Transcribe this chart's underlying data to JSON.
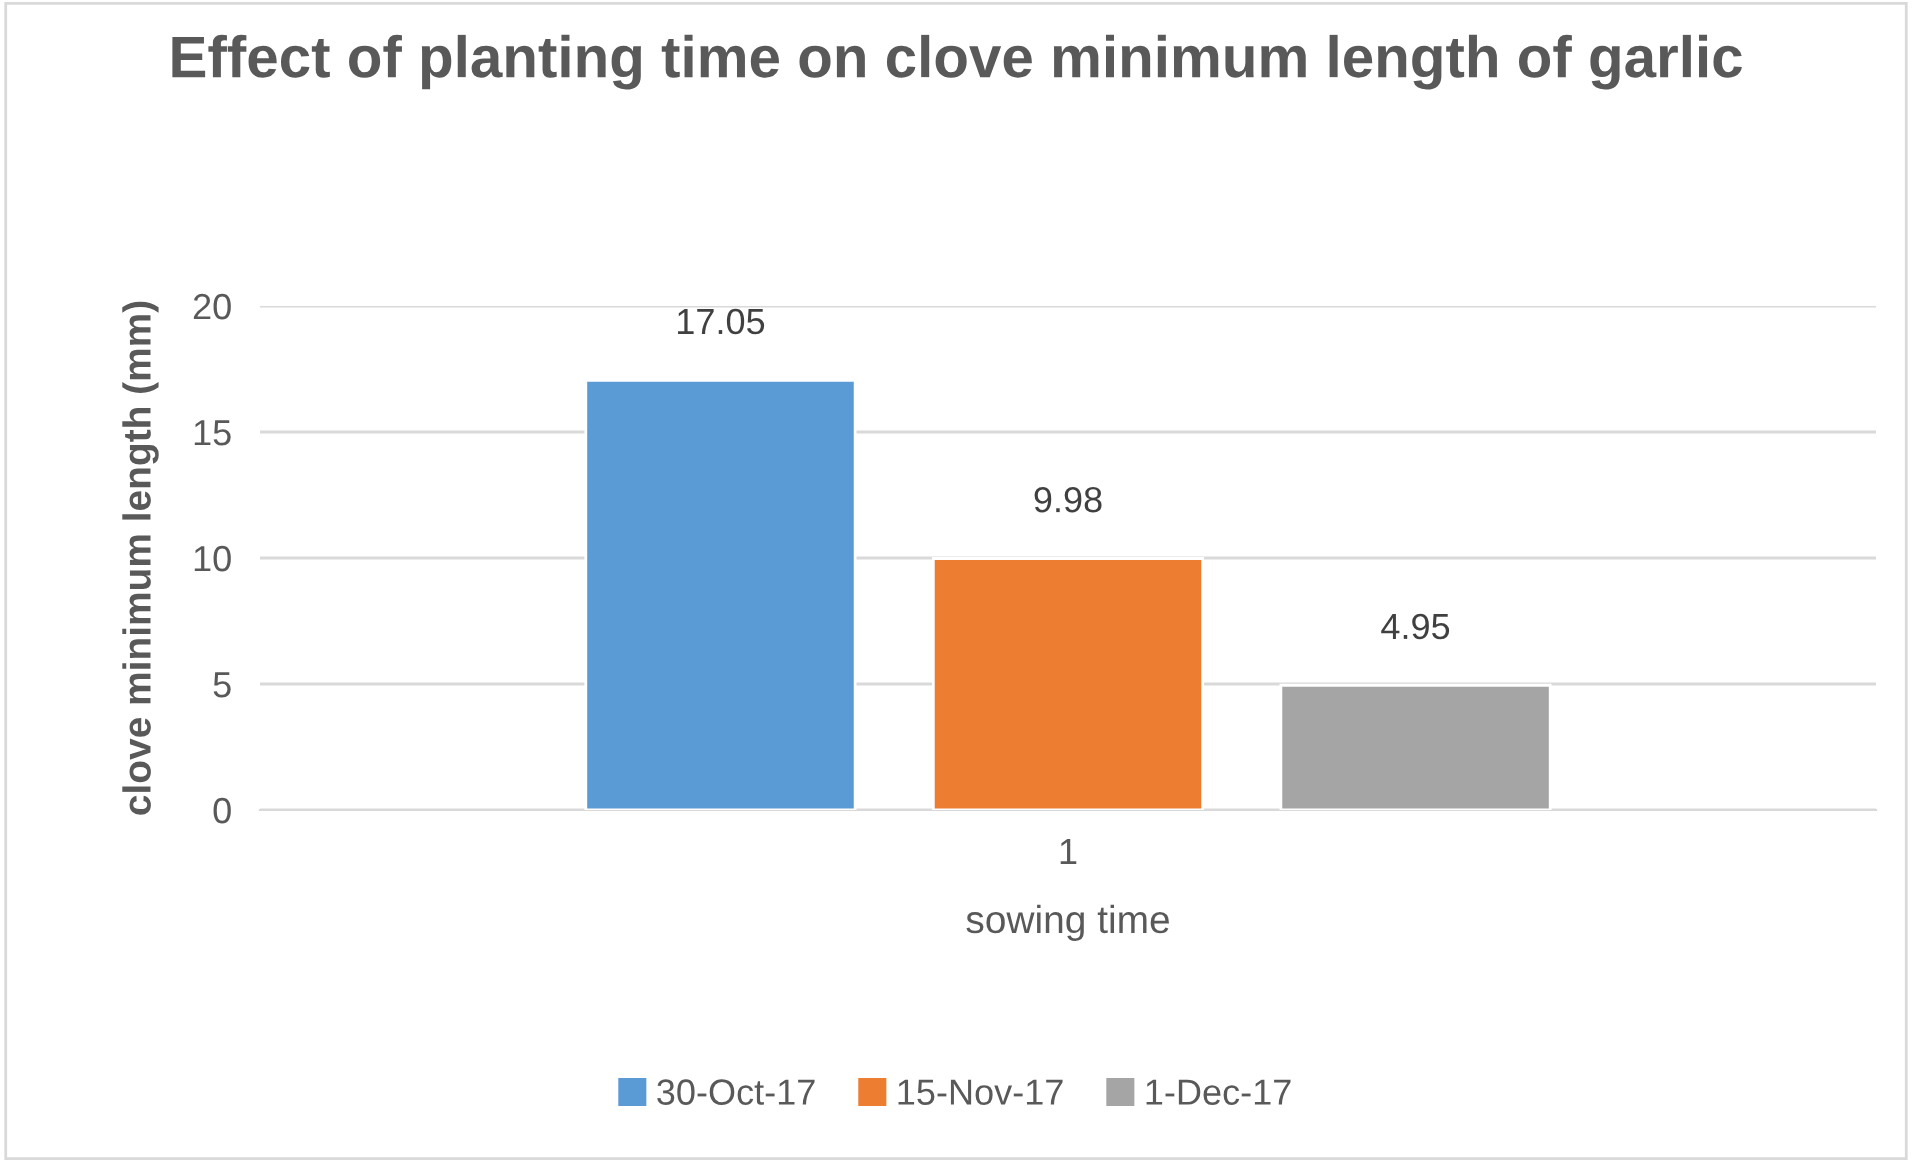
{
  "chart_data": {
    "type": "bar",
    "title": "Effect of planting time on clove minimum length of garlic",
    "xlabel": "sowing time",
    "ylabel": "clove minimum length (mm)",
    "categories": [
      "1"
    ],
    "series": [
      {
        "name": "30-Oct-17",
        "color": "#5b9bd5",
        "values": [
          17.05
        ]
      },
      {
        "name": "15-Nov-17",
        "color": "#ed7d31",
        "values": [
          9.98
        ]
      },
      {
        "name": "1-Dec-17",
        "color": "#a5a5a5",
        "values": [
          4.95
        ]
      }
    ],
    "ylim": [
      0,
      20
    ],
    "yticks": [
      0,
      5,
      10,
      15,
      20
    ],
    "grid": "y",
    "legend": "bottom",
    "data_labels": true
  }
}
